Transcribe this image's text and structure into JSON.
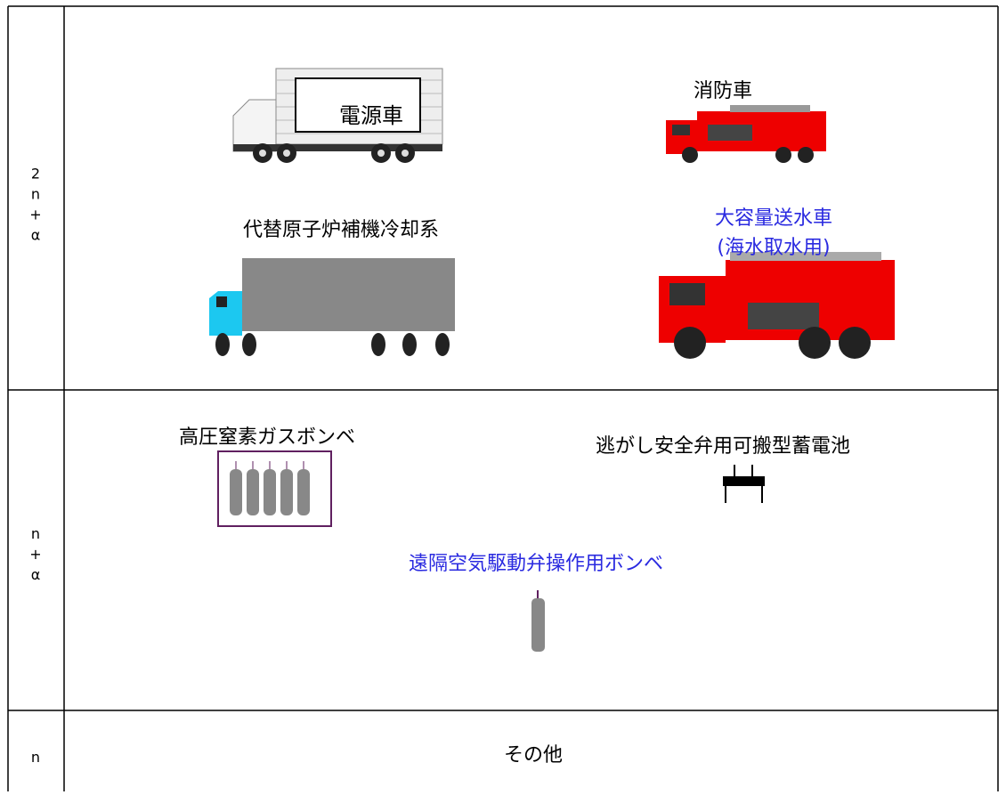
{
  "rows": [
    {
      "label": [
        "2",
        "n",
        "+",
        "α"
      ],
      "items": {
        "power_vehicle": "電源車",
        "fire_engine": "消防車",
        "cooling_system": "代替原子炉補機冷却系",
        "large_pump_truck": [
          "大容量送水車",
          "(海水取水用)"
        ]
      }
    },
    {
      "label": [
        "n",
        "+",
        "α"
      ],
      "items": {
        "nitrogen_cylinders": "高圧窒素ガスボンベ",
        "battery": "逃がし安全弁用可搬型蓄電池",
        "air_cylinder": "遠隔空気駆動弁操作用ボンベ"
      }
    },
    {
      "label": [
        "n"
      ],
      "items": {
        "other": "その他"
      }
    }
  ]
}
